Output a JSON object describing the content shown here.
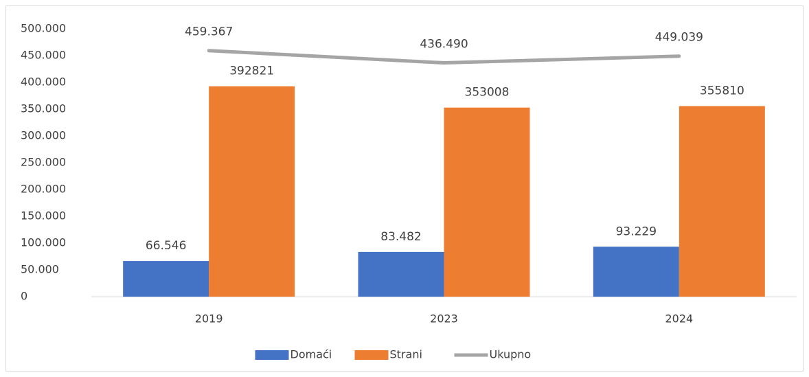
{
  "chart_data": {
    "type": "bar_line",
    "categories": [
      "2019",
      "2023",
      "2024"
    ],
    "series": [
      {
        "name": "Domaći",
        "type": "bar",
        "color": "#4472c4",
        "values": [
          66546,
          83482,
          93229
        ],
        "value_labels": [
          "66.546",
          "83.482",
          "93.229"
        ]
      },
      {
        "name": "Strani",
        "type": "bar",
        "color": "#ed7d31",
        "values": [
          392821,
          353008,
          355810
        ]
      },
      {
        "name": "Ukupno",
        "type": "line",
        "color": "#a5a5a5",
        "values": [
          459367,
          436490,
          449039
        ],
        "value_labels": [
          "459.367",
          "436.490",
          "449.039"
        ]
      }
    ],
    "ylim": [
      0,
      500000
    ],
    "yticks": [
      0,
      {
        "value": 50000,
        "label": "50.000"
      },
      {
        "value": 100000,
        "label": "100.000"
      },
      {
        "value": 150000,
        "label": "150.000"
      },
      {
        "value": 200000,
        "label": "200.000"
      },
      {
        "value": 250000,
        "label": "250.000"
      },
      {
        "value": 300000,
        "label": "300.000"
      },
      {
        "value": 350000,
        "label": "350.000"
      },
      {
        "value": 400000,
        "label": "400.000"
      },
      {
        "value": 450000,
        "label": "450.000"
      },
      {
        "value": 500000,
        "label": "500.000"
      }
    ],
    "grid": false,
    "legend": "bottom"
  }
}
